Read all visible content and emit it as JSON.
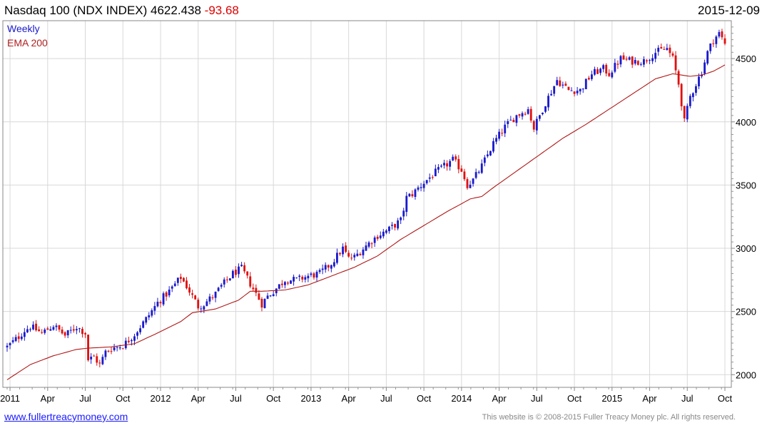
{
  "header": {
    "title": "Nasdaq 100 (NDX INDEX) 4622.438",
    "change": "-93.68",
    "date": "2015-12-09"
  },
  "legend": {
    "series1": "Weekly",
    "series2": "EMA 200"
  },
  "footer": {
    "left": "www.fullertreacymoney.com",
    "right": "This website is © 2008-2015 Fuller Treacy Money plc. All rights reserved."
  },
  "colors": {
    "up": "#1a1acc",
    "down": "#e01010",
    "ema": "#b01818",
    "grid": "#d8d8d8"
  },
  "chart_data": {
    "type": "candlestick",
    "x_labels": [
      "2011",
      "Apr",
      "Jul",
      "Oct",
      "2012",
      "Apr",
      "Jul",
      "Oct",
      "2013",
      "Apr",
      "Jul",
      "Oct",
      "2014",
      "Apr",
      "Jul",
      "Oct",
      "2015",
      "Apr",
      "Jul",
      "Oct"
    ],
    "y_ticks": [
      2000,
      2500,
      3000,
      3500,
      4000,
      4500
    ],
    "ylim": [
      1900,
      4800
    ],
    "close_keypoints": [
      [
        0,
        2220
      ],
      [
        4,
        2300
      ],
      [
        6,
        2350
      ],
      [
        8,
        2380
      ],
      [
        12,
        2330
      ],
      [
        16,
        2390
      ],
      [
        20,
        2310
      ],
      [
        24,
        2380
      ],
      [
        27,
        2330
      ],
      [
        28,
        2120
      ],
      [
        30,
        2140
      ],
      [
        32,
        2080
      ],
      [
        34,
        2180
      ],
      [
        36,
        2210
      ],
      [
        40,
        2230
      ],
      [
        44,
        2320
      ],
      [
        48,
        2440
      ],
      [
        52,
        2570
      ],
      [
        56,
        2660
      ],
      [
        60,
        2770
      ],
      [
        62,
        2700
      ],
      [
        64,
        2620
      ],
      [
        66,
        2540
      ],
      [
        68,
        2560
      ],
      [
        72,
        2640
      ],
      [
        74,
        2700
      ],
      [
        78,
        2800
      ],
      [
        81,
        2840
      ],
      [
        84,
        2720
      ],
      [
        86,
        2640
      ],
      [
        88,
        2560
      ],
      [
        90,
        2620
      ],
      [
        92,
        2660
      ],
      [
        96,
        2750
      ],
      [
        100,
        2750
      ],
      [
        104,
        2780
      ],
      [
        108,
        2800
      ],
      [
        112,
        2880
      ],
      [
        114,
        2940
      ],
      [
        116,
        3000
      ],
      [
        118,
        2920
      ],
      [
        120,
        2930
      ],
      [
        124,
        3020
      ],
      [
        128,
        3100
      ],
      [
        132,
        3150
      ],
      [
        136,
        3220
      ],
      [
        138,
        3400
      ],
      [
        140,
        3430
      ],
      [
        144,
        3520
      ],
      [
        148,
        3600
      ],
      [
        150,
        3630
      ],
      [
        154,
        3700
      ],
      [
        157,
        3620
      ],
      [
        159,
        3500
      ],
      [
        161,
        3540
      ],
      [
        164,
        3650
      ],
      [
        168,
        3830
      ],
      [
        172,
        3960
      ],
      [
        176,
        4050
      ],
      [
        180,
        4100
      ],
      [
        182,
        3950
      ],
      [
        184,
        4050
      ],
      [
        186,
        4150
      ],
      [
        190,
        4330
      ],
      [
        194,
        4250
      ],
      [
        198,
        4250
      ],
      [
        202,
        4380
      ],
      [
        206,
        4420
      ],
      [
        208,
        4380
      ],
      [
        212,
        4500
      ],
      [
        216,
        4480
      ],
      [
        220,
        4480
      ],
      [
        224,
        4550
      ],
      [
        228,
        4580
      ],
      [
        230,
        4500
      ],
      [
        232,
        4300
      ],
      [
        234,
        4000
      ],
      [
        236,
        4200
      ],
      [
        238,
        4300
      ],
      [
        240,
        4400
      ],
      [
        242,
        4550
      ],
      [
        244,
        4650
      ],
      [
        246,
        4700
      ],
      [
        248,
        4620
      ]
    ],
    "ema_keypoints": [
      [
        0,
        1960
      ],
      [
        8,
        2080
      ],
      [
        16,
        2150
      ],
      [
        24,
        2200
      ],
      [
        28,
        2210
      ],
      [
        36,
        2220
      ],
      [
        44,
        2245
      ],
      [
        52,
        2330
      ],
      [
        60,
        2420
      ],
      [
        64,
        2490
      ],
      [
        72,
        2520
      ],
      [
        80,
        2590
      ],
      [
        84,
        2660
      ],
      [
        88,
        2660
      ],
      [
        96,
        2670
      ],
      [
        104,
        2710
      ],
      [
        112,
        2780
      ],
      [
        120,
        2850
      ],
      [
        128,
        2940
      ],
      [
        136,
        3070
      ],
      [
        144,
        3180
      ],
      [
        152,
        3290
      ],
      [
        160,
        3390
      ],
      [
        164,
        3410
      ],
      [
        168,
        3480
      ],
      [
        176,
        3610
      ],
      [
        184,
        3740
      ],
      [
        192,
        3870
      ],
      [
        200,
        3980
      ],
      [
        208,
        4100
      ],
      [
        216,
        4220
      ],
      [
        224,
        4340
      ],
      [
        230,
        4380
      ],
      [
        236,
        4360
      ],
      [
        240,
        4370
      ],
      [
        244,
        4400
      ],
      [
        248,
        4450
      ]
    ]
  }
}
